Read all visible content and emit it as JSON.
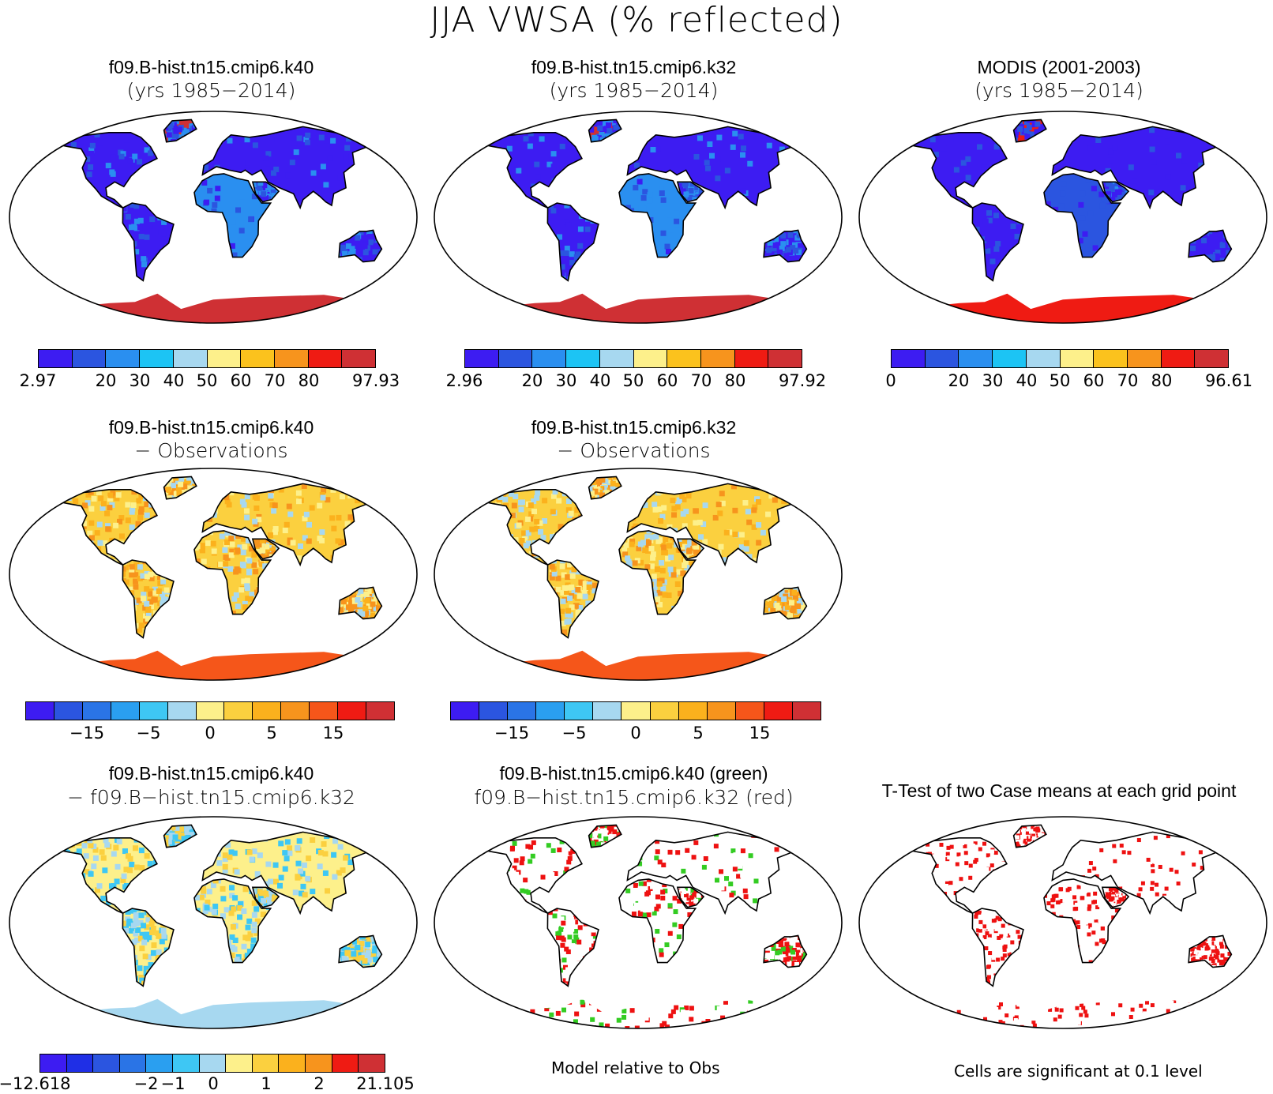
{
  "title": "JJA VWSA (% reflected)",
  "colors": {
    "seq": [
      "#3d1cf2",
      "#2b55e0",
      "#2a8ff0",
      "#1cc4f4",
      "#a7d8f0",
      "#fdf08b",
      "#fbc21d",
      "#f7941d",
      "#ef1b13",
      "#cf3034"
    ],
    "diff": [
      "#3d1cf2",
      "#2b55e0",
      "#2a74e6",
      "#2a9ff0",
      "#3ec7f4",
      "#a7d8f0",
      "#fdf08b",
      "#fbd03f",
      "#fbb11d",
      "#f7941d",
      "#f5561a",
      "#ef1b13",
      "#cf3034"
    ],
    "diff2": [
      "#3d1cf2",
      "#1f2fe6",
      "#2b55e0",
      "#2a74e6",
      "#2a9ff0",
      "#3ec7f4",
      "#a7d8f0",
      "#fdf08b",
      "#fbd03f",
      "#fbb11d",
      "#f7941d",
      "#ef1b13",
      "#cf3034"
    ]
  },
  "panels": [
    {
      "id": "p1",
      "line1": "f09.B-hist.tn15.cmip6.k40",
      "line2": "(yrs 1985−2014)"
    },
    {
      "id": "p2",
      "line1": "f09.B-hist.tn15.cmip6.k32",
      "line2": "(yrs 1985−2014)"
    },
    {
      "id": "p3",
      "line1": "MODIS (2001-2003)",
      "line2": "(yrs 1985−2014)"
    },
    {
      "id": "p4",
      "line1": "f09.B-hist.tn15.cmip6.k40",
      "line2": "− Observations"
    },
    {
      "id": "p5",
      "line1": "f09.B-hist.tn15.cmip6.k32",
      "line2": "− Observations"
    },
    {
      "id": "p6",
      "line1": "f09.B-hist.tn15.cmip6.k40",
      "line2": "− f09.B−hist.tn15.cmip6.k32"
    },
    {
      "id": "p7",
      "line1": "f09.B-hist.tn15.cmip6.k40 (green)",
      "line2": "f09.B−hist.tn15.cmip6.k32 (red)"
    },
    {
      "id": "p8",
      "line1": "T-Test of two Case means at each grid point",
      "line2": ""
    }
  ],
  "colorbars": [
    {
      "id": "cb1",
      "ticks": [
        "2.97",
        "20",
        "30",
        "40",
        "50",
        "60",
        "70",
        "80",
        "97.93"
      ]
    },
    {
      "id": "cb2",
      "ticks": [
        "2.96",
        "20",
        "30",
        "40",
        "50",
        "60",
        "70",
        "80",
        "97.92"
      ]
    },
    {
      "id": "cb3",
      "ticks": [
        "0",
        "20",
        "30",
        "40",
        "50",
        "60",
        "70",
        "80",
        "96.61"
      ]
    },
    {
      "id": "cb4",
      "ticks": [
        "−15",
        "−5",
        "0",
        "5",
        "15"
      ]
    },
    {
      "id": "cb5",
      "ticks": [
        "−15",
        "−5",
        "0",
        "5",
        "15"
      ]
    },
    {
      "id": "cb6",
      "ticks": [
        "−12.618",
        "−2",
        "−1",
        "0",
        "1",
        "2",
        "21.105"
      ]
    }
  ],
  "notes": {
    "model_rel": "Model relative to Obs",
    "significance": "Cells are significant at 0.1 level"
  }
}
